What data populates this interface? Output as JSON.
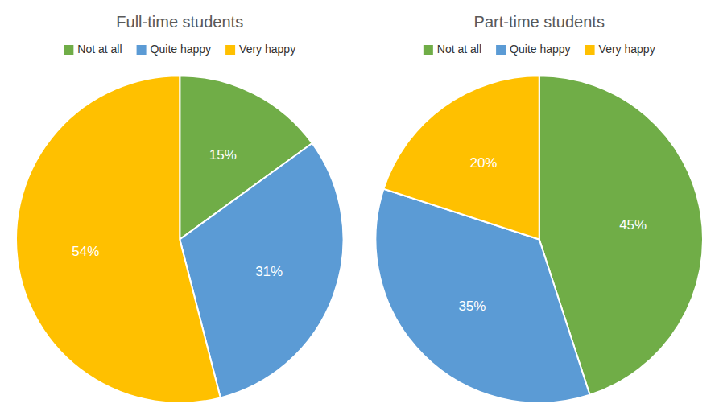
{
  "chart_data": [
    {
      "type": "pie",
      "title": "Full-time students",
      "categories": [
        "Not at all",
        "Quite happy",
        "Very happy"
      ],
      "values": [
        15,
        31,
        54
      ],
      "value_labels": [
        "15%",
        "31%",
        "54%"
      ],
      "colors": [
        "#70AD47",
        "#5B9BD5",
        "#FFC000"
      ],
      "data_labels": true,
      "legend": "top"
    },
    {
      "type": "pie",
      "title": "Part-time students",
      "categories": [
        "Not at all",
        "Quite happy",
        "Very happy"
      ],
      "values": [
        45,
        35,
        20
      ],
      "value_labels": [
        "45%",
        "35%",
        "20%"
      ],
      "colors": [
        "#70AD47",
        "#5B9BD5",
        "#FFC000"
      ],
      "data_labels": true,
      "legend": "top"
    }
  ]
}
